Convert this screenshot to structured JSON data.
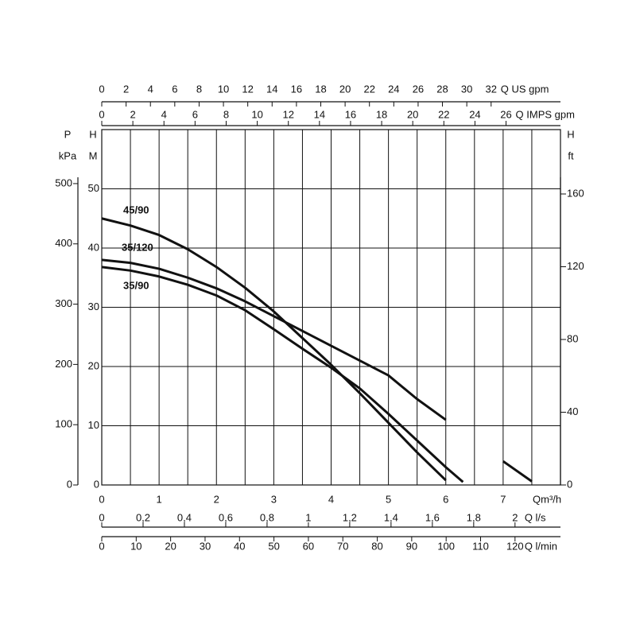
{
  "chart_data": {
    "type": "line",
    "x_label": "Qm³/h",
    "y_title": "H",
    "y_unit": "M",
    "xlim": [
      0,
      8
    ],
    "xticks": [
      0,
      1,
      2,
      3,
      4,
      5,
      6,
      7
    ],
    "ylim": [
      0,
      60
    ],
    "yticks": [
      0,
      10,
      20,
      30,
      40,
      50
    ],
    "grid": true,
    "x": [
      0,
      0.5,
      1,
      1.5,
      2,
      2.5,
      3,
      3.5,
      4,
      4.5,
      5,
      5.5,
      6,
      6.3,
      7,
      7.5
    ],
    "series": [
      {
        "name": "45/90",
        "color": "#111111",
        "values": [
          45,
          43.8,
          42.2,
          39.8,
          36.8,
          33.3,
          29.3,
          24.8,
          20.3,
          15.5,
          10.5,
          5.5,
          0.8,
          null,
          null,
          null
        ]
      },
      {
        "name": "35/120",
        "color": "#111111",
        "values": [
          38,
          37.5,
          36.5,
          35,
          33.2,
          31,
          28.5,
          26,
          23.5,
          21,
          18.5,
          14.5,
          11,
          null,
          4,
          0.6
        ]
      },
      {
        "name": "35/90",
        "color": "#111111",
        "values": [
          36.8,
          36.2,
          35.2,
          33.8,
          32,
          29.5,
          26.3,
          23,
          19.8,
          16.3,
          12,
          7.5,
          3,
          0.5,
          null,
          null
        ]
      }
    ],
    "extra_axes": [
      {
        "side": "top",
        "label": "Q US gpm",
        "lim": [
          0,
          37.7
        ],
        "ticks": [
          0,
          2,
          4,
          6,
          8,
          10,
          12,
          14,
          16,
          18,
          20,
          22,
          24,
          26,
          28,
          30,
          32
        ]
      },
      {
        "side": "top",
        "label": "Q IMPS gpm",
        "lim": [
          0,
          29.5
        ],
        "ticks": [
          0,
          2,
          4,
          6,
          8,
          10,
          12,
          14,
          16,
          18,
          20,
          22,
          24,
          26
        ]
      },
      {
        "side": "bottom",
        "label": "Q l/s",
        "lim": [
          0,
          2.22
        ],
        "ticks": [
          0,
          {
            "value": 0.2,
            "label": "0,2"
          },
          {
            "value": 0.4,
            "label": "0,4"
          },
          {
            "value": 0.6,
            "label": "0,6"
          },
          {
            "value": 0.8,
            "label": "0,8"
          },
          1,
          {
            "value": 1.2,
            "label": "1,2"
          },
          {
            "value": 1.4,
            "label": "1,4"
          },
          {
            "value": 1.6,
            "label": "1,6"
          },
          {
            "value": 1.8,
            "label": "1,8"
          },
          2
        ]
      },
      {
        "side": "bottom",
        "label": "Q l/min",
        "lim": [
          0,
          133.2
        ],
        "ticks": [
          0,
          10,
          20,
          30,
          40,
          50,
          60,
          70,
          80,
          90,
          100,
          110,
          120
        ]
      },
      {
        "side": "left",
        "title": "P",
        "label": "kPa",
        "lim": [
          0,
          589.6
        ],
        "ticks": [
          0,
          100,
          200,
          300,
          400,
          500
        ]
      },
      {
        "side": "right",
        "title": "H",
        "label": "ft",
        "lim": [
          0,
          195.4
        ],
        "ticks": [
          0,
          40,
          80,
          120,
          160
        ]
      }
    ]
  }
}
